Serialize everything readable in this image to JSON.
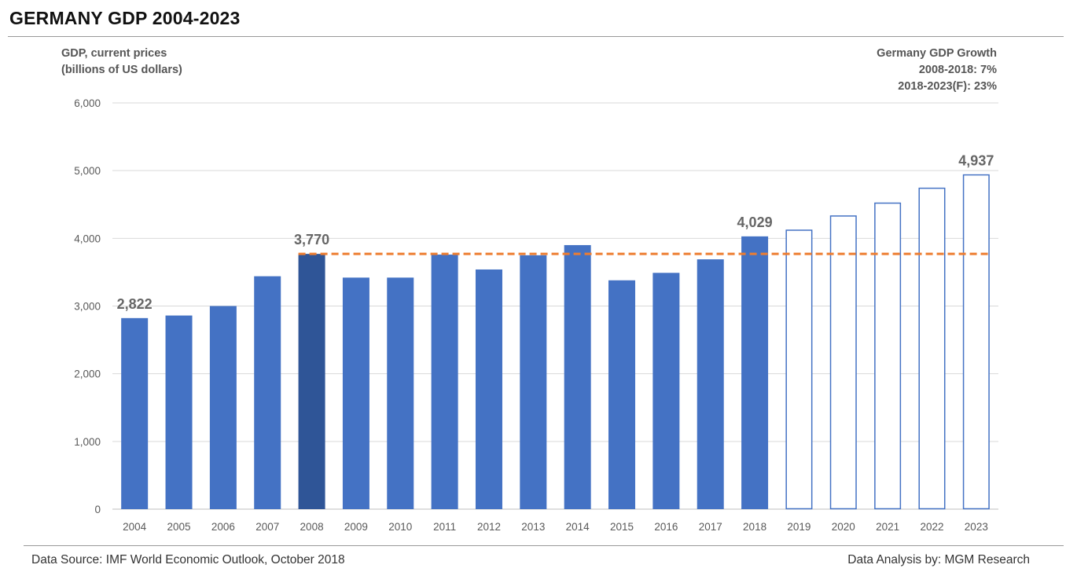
{
  "header": {
    "title": "GERMANY GDP 2004-2023"
  },
  "y_axis_label": {
    "line1": "GDP, current prices",
    "line2": "(billions of US dollars)"
  },
  "growth_note": {
    "line1": "Germany GDP Growth",
    "line2": "2008-2018: 7%",
    "line3": "2018-2023(F): 23%"
  },
  "footer": {
    "source": "Data Source: IMF World Economic Outlook, October 2018",
    "analysis": "Data Analysis by: MGM Research"
  },
  "colors": {
    "bar": "#4472C4",
    "highlight_bar": "#2F5597",
    "forecast_outline": "#4472C4",
    "reference_line": "#ED7D31",
    "grid": "#D9D9D9"
  },
  "chart_data": {
    "type": "bar",
    "title": "GERMANY GDP 2004-2023",
    "ylabel": "GDP, current prices (billions of US dollars)",
    "xlabel": "",
    "ylim": [
      0,
      6000
    ],
    "yticks": [
      "0",
      "1,000",
      "2,000",
      "3,000",
      "4,000",
      "5,000",
      "6,000"
    ],
    "ytick_values": [
      0,
      1000,
      2000,
      3000,
      4000,
      5000,
      6000
    ],
    "grid": true,
    "categories": [
      "2004",
      "2005",
      "2006",
      "2007",
      "2008",
      "2009",
      "2010",
      "2011",
      "2012",
      "2013",
      "2014",
      "2015",
      "2016",
      "2017",
      "2018",
      "2019",
      "2020",
      "2021",
      "2022",
      "2023"
    ],
    "values": [
      2822,
      2860,
      3000,
      3440,
      3770,
      3420,
      3420,
      3760,
      3540,
      3750,
      3900,
      3380,
      3490,
      3690,
      4029,
      4120,
      4330,
      4520,
      4740,
      4937
    ],
    "forecast_from": "2019",
    "highlight": "2008",
    "data_labels": [
      {
        "category": "2004",
        "text": "2,822"
      },
      {
        "category": "2008",
        "text": "3,770"
      },
      {
        "category": "2018",
        "text": "4,029"
      },
      {
        "category": "2023",
        "text": "4,937"
      }
    ],
    "reference_line": {
      "value": 3770,
      "from": "2008",
      "to": "2023",
      "style": "dashed"
    }
  }
}
